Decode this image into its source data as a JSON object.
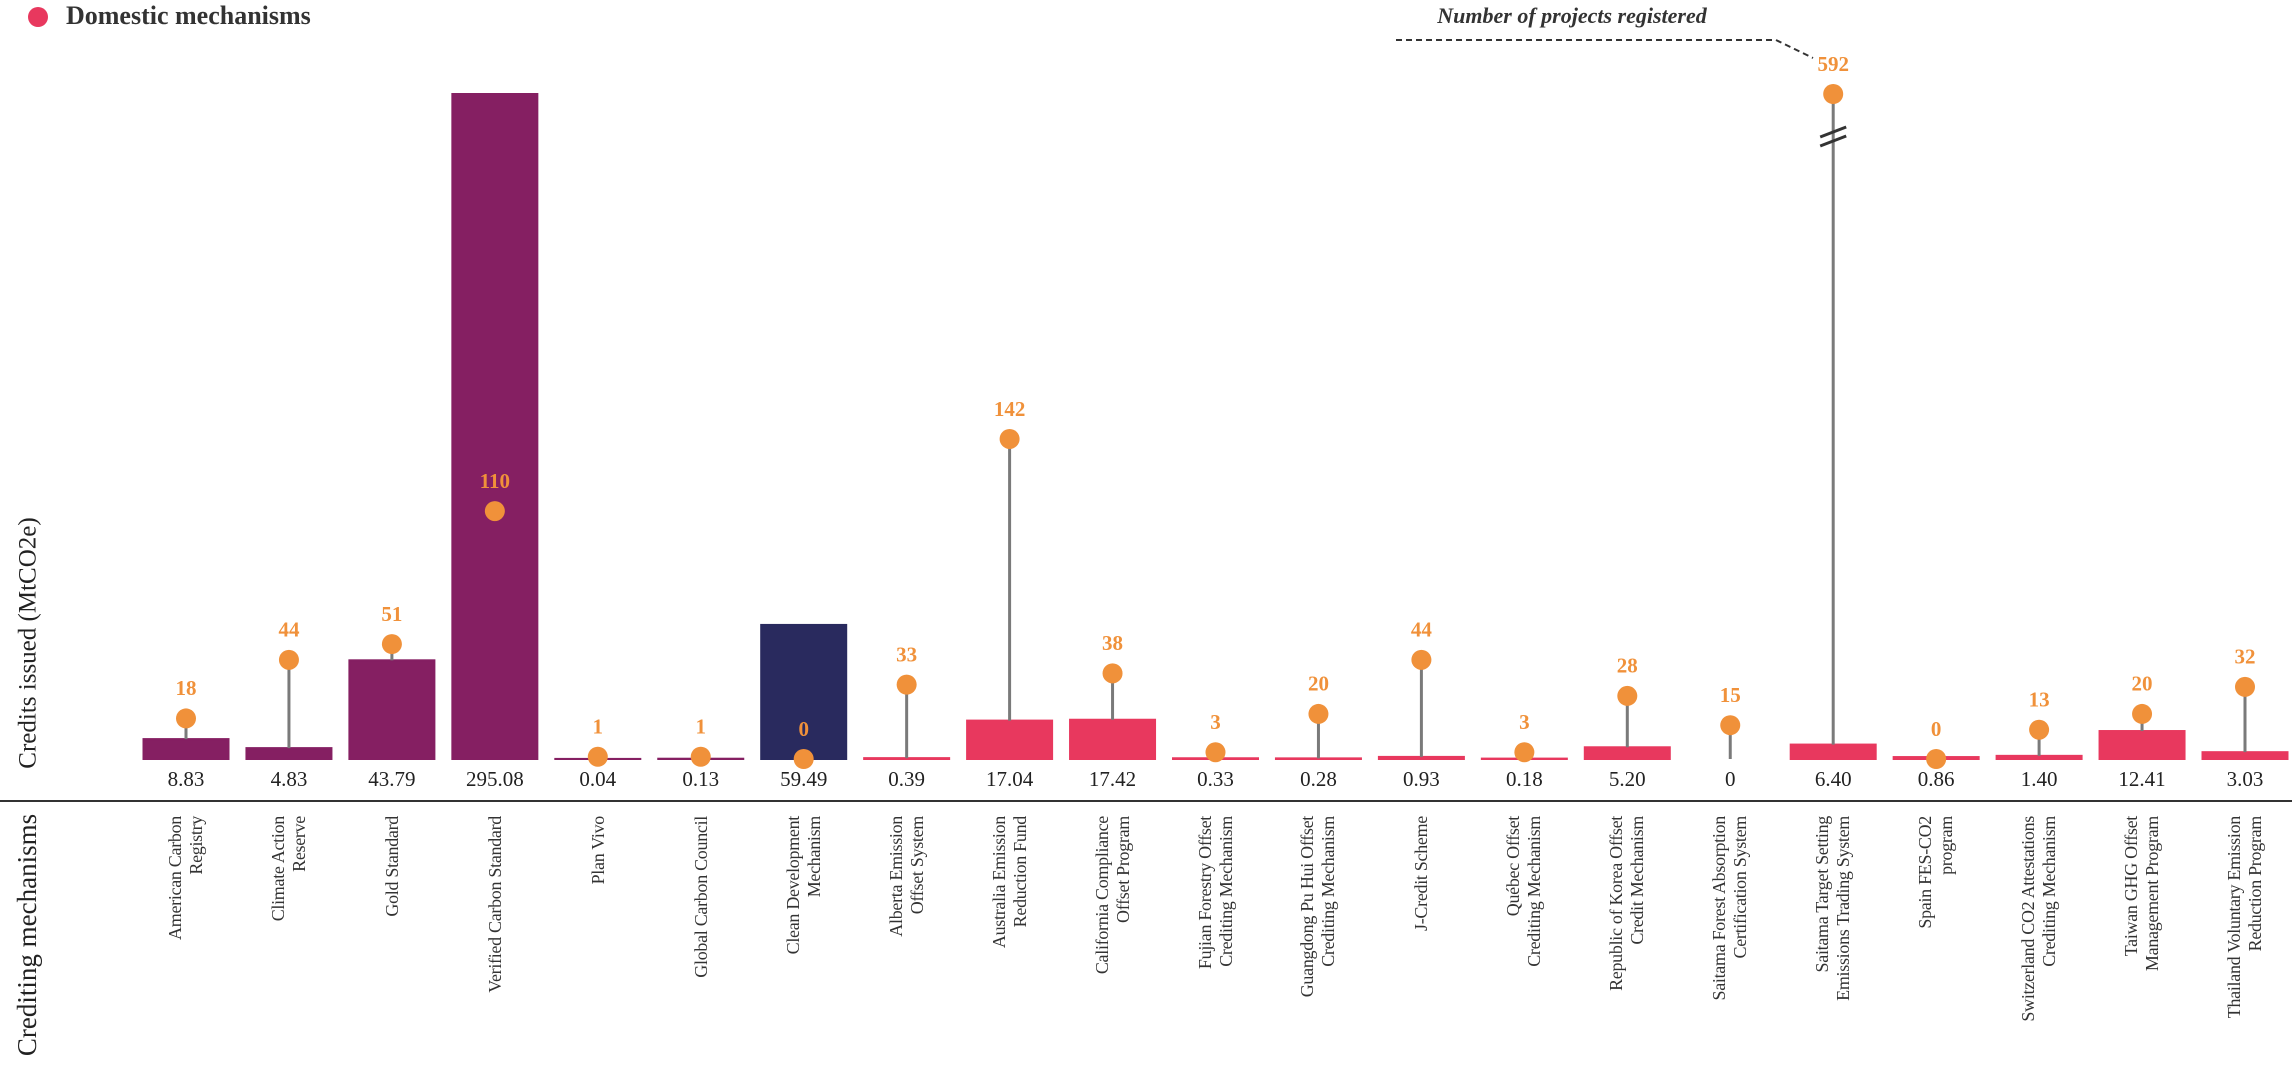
{
  "chart_data": {
    "type": "bar",
    "ylabel": "Credits issued (MtCO2e)",
    "xlabel": "Crediting mechanisms",
    "legend": [
      {
        "name": "Domestic mechanisms",
        "color": "#e8385e"
      }
    ],
    "annotation": "Number of projects registered",
    "categories": [
      "American Carbon\nRegistry",
      "Climate Action\nReserve",
      "Gold Standard",
      "Verified Carbon Standard",
      "Plan Vivo",
      "Global Carbon Council",
      "Clean Development\nMechanism",
      "Alberta Emission\nOffset System",
      "Australia Emission\nReduction Fund",
      "California Compliance\nOffset Program",
      "Fujian Forestry Offset\nCrediting Mechanism",
      "Guangdong Pu Hui Offset\nCrediting Mechanism",
      "J-Credit Scheme",
      "Québec Offset\nCrediting Mechanism",
      "Republic of Korea Offset\nCredit Mechanism",
      "Saitama Forest Absorption\nCertification System",
      "Saitama Target Setting\nEmissions Trading System",
      "Spain FES-CO2\nprogram",
      "Switzerland CO2 Attestations\nCrediting Mechanism",
      "Taiwan GHG Offset\nManagement Program",
      "Thailand Voluntary Emission\nReduction Program"
    ],
    "values": [
      8.83,
      4.83,
      43.79,
      295.08,
      0.04,
      0.13,
      59.49,
      0.39,
      17.04,
      17.42,
      0.33,
      0.28,
      0.93,
      0.18,
      5.2,
      0,
      6.4,
      0.86,
      1.4,
      12.41,
      3.03
    ],
    "value_labels": [
      "8.83",
      "4.83",
      "43.79",
      "295.08",
      "0.04",
      "0.13",
      "59.49",
      "0.39",
      "17.04",
      "17.42",
      "0.33",
      "0.28",
      "0.93",
      "0.18",
      "5.20",
      "0",
      "6.40",
      "0.86",
      "1.40",
      "12.41",
      "3.03"
    ],
    "colors": [
      "#851f62",
      "#851f62",
      "#851f62",
      "#851f62",
      "#851f62",
      "#851f62",
      "#292a5e",
      "#e8385e",
      "#e8385e",
      "#e8385e",
      "#e8385e",
      "#e8385e",
      "#e8385e",
      "#e8385e",
      "#e8385e",
      "#e8385e",
      "#e8385e",
      "#e8385e",
      "#e8385e",
      "#e8385e",
      "#e8385e"
    ],
    "projects": {
      "name": "Number of projects registered",
      "color": "#f0913a",
      "values": [
        18,
        44,
        51,
        110,
        1,
        1,
        0,
        33,
        142,
        38,
        3,
        20,
        44,
        3,
        28,
        15,
        592,
        0,
        13,
        20,
        32
      ]
    }
  }
}
